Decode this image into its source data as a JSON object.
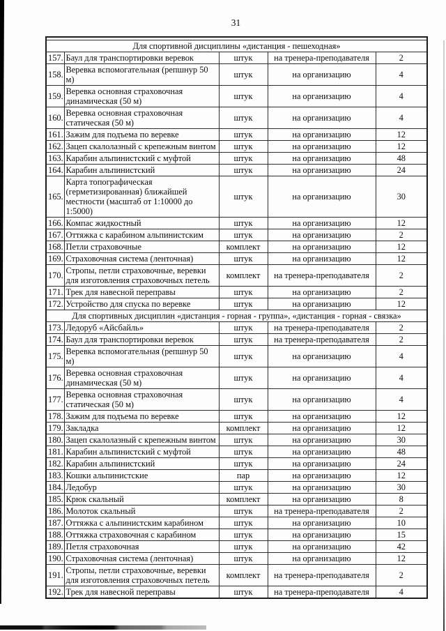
{
  "page": {
    "number": "31"
  },
  "table": {
    "sections": [
      {
        "header": "Для спортивной дисциплины «дистанция - пешеходная»",
        "rows": [
          {
            "n": "157.",
            "name": "Баул для транспортировки веревок",
            "unit": "штук",
            "per": "на тренера-преподавателя",
            "qty": "2"
          },
          {
            "n": "158.",
            "name": "Веревка вспомогательная (репшнур 50 м)",
            "unit": "штук",
            "per": "на организацию",
            "qty": "4"
          },
          {
            "n": "159.",
            "name": "Веревка основная страховочная динамическая (50 м)",
            "unit": "штук",
            "per": "на организацию",
            "qty": "4"
          },
          {
            "n": "160.",
            "name": "Веревка основная страховочная статическая (50 м)",
            "unit": "штук",
            "per": "на организацию",
            "qty": "4"
          },
          {
            "n": "161.",
            "name": "Зажим для подъема по веревке",
            "unit": "штук",
            "per": "на организацию",
            "qty": "12"
          },
          {
            "n": "162.",
            "name": "Зацеп скалолазный с крепежным винтом",
            "unit": "штук",
            "per": "на организацию",
            "qty": "12"
          },
          {
            "n": "163.",
            "name": "Карабин альпинистский с муфтой",
            "unit": "штук",
            "per": "на организацию",
            "qty": "48"
          },
          {
            "n": "164.",
            "name": "Карабин альпинистский",
            "unit": "штук",
            "per": "на организацию",
            "qty": "24"
          },
          {
            "n": "165.",
            "name": "Карта топографическая (герметизированная) ближайшей местности (масштаб от 1:10000 до 1:5000)",
            "unit": "штук",
            "per": "на организацию",
            "qty": "30"
          },
          {
            "n": "166.",
            "name": "Компас жидкостный",
            "unit": "штук",
            "per": "на организацию",
            "qty": "12"
          },
          {
            "n": "167.",
            "name": "Оттяжка с карабином альпинистским",
            "unit": "штук",
            "per": "на организацию",
            "qty": "2"
          },
          {
            "n": "168.",
            "name": "Петли страховочные",
            "unit": "комплект",
            "per": "на организацию",
            "qty": "12"
          },
          {
            "n": "169.",
            "name": "Страховочная система (ленточная)",
            "unit": "штук",
            "per": "на организацию",
            "qty": "12"
          },
          {
            "n": "170.",
            "name": "Стропы, петли страховочные, веревки для изготовления страховочных петель",
            "unit": "комплект",
            "per": "на тренера-преподавателя",
            "qty": "2"
          },
          {
            "n": "171.",
            "name": "Трек для навесной переправы",
            "unit": "штук",
            "per": "на организацию",
            "qty": "2"
          },
          {
            "n": "172.",
            "name": "Устройство для спуска по веревке",
            "unit": "штук",
            "per": "на организацию",
            "qty": "12"
          }
        ]
      },
      {
        "header": "Для спортивных дисциплин «дистанция - горная - группа», «дистанция - горная - связка»",
        "rows": [
          {
            "n": "173.",
            "name": "Ледоруб «Айсбайль»",
            "unit": "штук",
            "per": "на тренера-преподавателя",
            "qty": "2"
          },
          {
            "n": "174.",
            "name": "Баул для транспортировки веревок",
            "unit": "штук",
            "per": "на тренера-преподавателя",
            "qty": "2"
          },
          {
            "n": "175.",
            "name": "Веревка вспомогательная (репшнур 50 м)",
            "unit": "штук",
            "per": "на организацию",
            "qty": "4"
          },
          {
            "n": "176.",
            "name": "Веревка основная страховочная динамическая (50 м)",
            "unit": "штук",
            "per": "на организацию",
            "qty": "4"
          },
          {
            "n": "177.",
            "name": "Веревка основная страховочная статическая (50 м)",
            "unit": "штук",
            "per": "на организацию",
            "qty": "4"
          },
          {
            "n": "178.",
            "name": "Зажим для подъема по веревке",
            "unit": "штук",
            "per": "на организацию",
            "qty": "12"
          },
          {
            "n": "179.",
            "name": "Закладка",
            "unit": "комплект",
            "per": "на организацию",
            "qty": "12"
          },
          {
            "n": "180.",
            "name": "Зацеп скалолазный с крепежным винтом",
            "unit": "штук",
            "per": "на организацию",
            "qty": "30"
          },
          {
            "n": "181.",
            "name": "Карабин альпинистский с муфтой",
            "unit": "штук",
            "per": "на организацию",
            "qty": "48"
          },
          {
            "n": "182.",
            "name": "Карабин альпинистский",
            "unit": "штук",
            "per": "на организацию",
            "qty": "24"
          },
          {
            "n": "183.",
            "name": "Кошки альпинистские",
            "unit": "пар",
            "per": "на организацию",
            "qty": "12"
          },
          {
            "n": "184.",
            "name": "Ледобур",
            "unit": "штук",
            "per": "на организацию",
            "qty": "30"
          },
          {
            "n": "185.",
            "name": "Крюк скальный",
            "unit": "комплект",
            "per": "на организацию",
            "qty": "8"
          },
          {
            "n": "186.",
            "name": "Молоток скальный",
            "unit": "штук",
            "per": "на тренера-преподавателя",
            "qty": "2"
          },
          {
            "n": "187.",
            "name": "Оттяжка с альпинистским карабином",
            "unit": "штук",
            "per": "на организацию",
            "qty": "10"
          },
          {
            "n": "188.",
            "name": "Оттяжка страховочная с карабином",
            "unit": "штук",
            "per": "на организацию",
            "qty": "15"
          },
          {
            "n": "189.",
            "name": "Петля страховочная",
            "unit": "штук",
            "per": "на организацию",
            "qty": "42"
          },
          {
            "n": "190.",
            "name": "Страховочная система (ленточная)",
            "unit": "штук",
            "per": "на организацию",
            "qty": "12"
          },
          {
            "n": "191.",
            "name": "Стропы, петли страховочные, веревки для изготовления страховочных петель",
            "unit": "комплект",
            "per": "на тренера-преподавателя",
            "qty": "2"
          },
          {
            "n": "192.",
            "name": "Трек для навесной переправы",
            "unit": "штук",
            "per": "на тренера-преподавателя",
            "qty": "4"
          }
        ]
      }
    ]
  }
}
